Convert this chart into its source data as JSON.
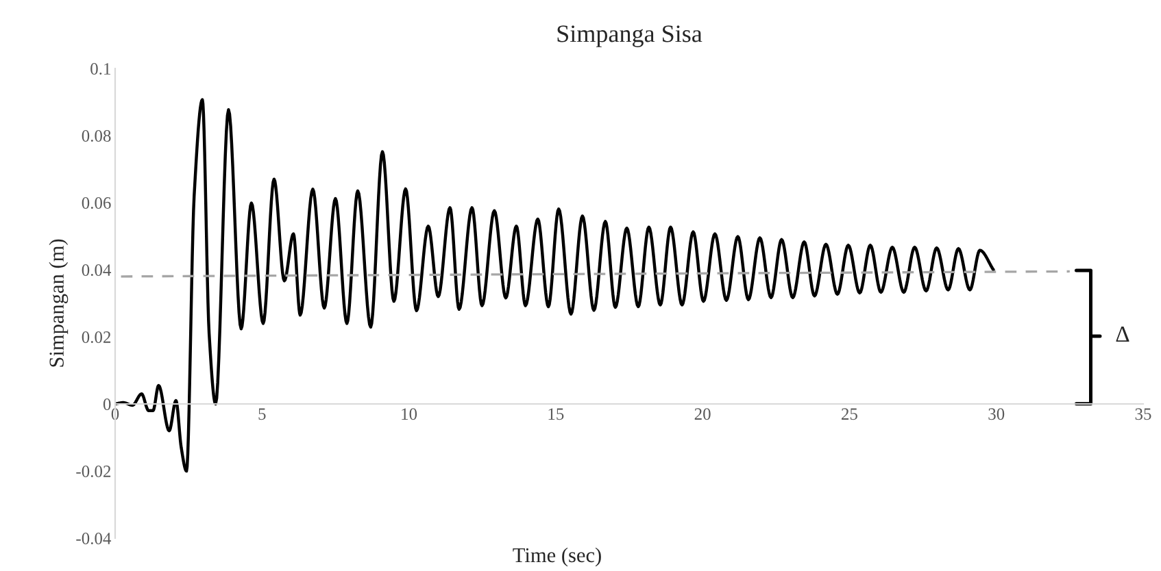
{
  "chart_data": {
    "type": "line",
    "title": "Simpanga Sisa",
    "xlabel": "Time (sec)",
    "ylabel": "Simpangan (m)",
    "xlim": [
      0,
      35
    ],
    "xticks": [
      0,
      5,
      10,
      15,
      20,
      25,
      30,
      35
    ],
    "ylim": [
      -0.04,
      0.1
    ],
    "yticks": [
      -0.04,
      -0.02,
      0,
      0.02,
      0.04,
      0.06,
      0.08,
      0.1
    ],
    "grid": false,
    "legend": false,
    "series": [
      {
        "color": "#000000",
        "x": [
          0,
          0.28,
          0.59,
          0.9,
          1.14,
          1.29,
          1.48,
          1.84,
          2.07,
          2.25,
          2.43,
          2.69,
          2.97,
          3.2,
          3.42,
          3.86,
          4.29,
          4.64,
          5.04,
          5.41,
          5.76,
          6.07,
          6.3,
          6.73,
          7.12,
          7.5,
          7.89,
          8.26,
          8.7,
          9.1,
          9.49,
          9.89,
          10.26,
          10.66,
          11.0,
          11.4,
          11.71,
          12.15,
          12.49,
          12.91,
          13.3,
          13.66,
          13.97,
          14.39,
          14.75,
          15.1,
          15.52,
          15.91,
          16.3,
          16.69,
          17.03,
          17.42,
          17.81,
          18.17,
          18.56,
          18.91,
          19.3,
          19.68,
          20.03,
          20.42,
          20.81,
          21.2,
          21.56,
          21.95,
          22.33,
          22.69,
          23.07,
          23.46,
          23.81,
          24.2,
          24.59,
          24.96,
          25.35,
          25.71,
          26.07,
          26.46,
          26.85,
          27.22,
          27.61,
          27.97,
          28.36,
          28.71,
          29.1,
          29.44,
          29.9
        ],
        "values": [
          0,
          0.0004,
          -0.0004,
          0.003,
          -0.002,
          -0.002,
          0.0055,
          -0.008,
          0.001,
          -0.013,
          -0.02,
          0.062,
          0.0907,
          0.021,
          0,
          0.0877,
          0.0224,
          0.0599,
          0.024,
          0.067,
          0.0367,
          0.0507,
          0.0265,
          0.064,
          0.0286,
          0.0612,
          0.024,
          0.0635,
          0.0229,
          0.0752,
          0.0306,
          0.0641,
          0.0278,
          0.053,
          0.032,
          0.0585,
          0.0282,
          0.0585,
          0.0293,
          0.0576,
          0.0316,
          0.053,
          0.0293,
          0.0551,
          0.029,
          0.0581,
          0.0268,
          0.056,
          0.0279,
          0.0544,
          0.0288,
          0.0524,
          0.029,
          0.0527,
          0.0295,
          0.0527,
          0.0295,
          0.0513,
          0.0306,
          0.0507,
          0.0309,
          0.0499,
          0.0311,
          0.0495,
          0.0317,
          0.049,
          0.0317,
          0.0483,
          0.0322,
          0.0476,
          0.0327,
          0.0473,
          0.0331,
          0.0473,
          0.0333,
          0.0467,
          0.0333,
          0.0467,
          0.0337,
          0.0465,
          0.034,
          0.0463,
          0.034,
          0.0458,
          0.04
        ]
      },
      {
        "type": "line",
        "color": "#a6a6a6",
        "line_style": "dashed",
        "x": [
          0.2,
          32.5
        ],
        "values": [
          0.038,
          0.0395
        ]
      }
    ],
    "annotations": [
      "Δ"
    ]
  }
}
